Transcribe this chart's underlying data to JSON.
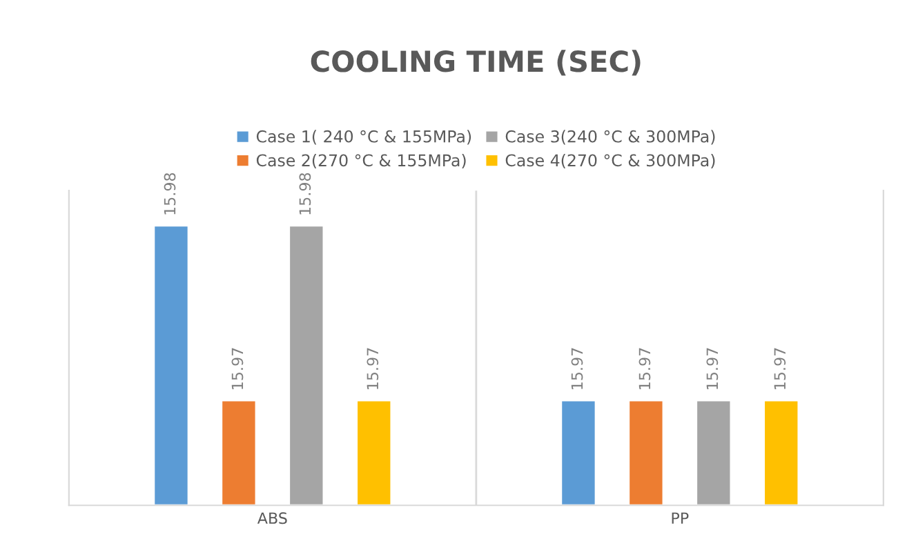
{
  "chart_data": {
    "type": "bar",
    "title": "COOLING TIME (SEC)",
    "categories": [
      "ABS",
      "PP"
    ],
    "series": [
      {
        "name": "Case 1( 240 °C & 155MPa)",
        "color": "#5b9bd5",
        "values": [
          15.98,
          15.97
        ]
      },
      {
        "name": "Case 2(270 °C & 155MPa)",
        "color": "#ed7d31",
        "values": [
          15.97,
          15.97
        ]
      },
      {
        "name": "Case 3(240 °C & 300MPa)",
        "color": "#a5a5a5",
        "values": [
          15.98,
          15.97
        ]
      },
      {
        "name": "Case 4(270 °C & 300MPa)",
        "color": "#ffc000",
        "values": [
          15.97,
          15.97
        ]
      }
    ],
    "ylim": [
      15.964,
      15.982
    ],
    "tick_labels": "x",
    "data_labels": true,
    "grid": "x",
    "legend": "top"
  }
}
